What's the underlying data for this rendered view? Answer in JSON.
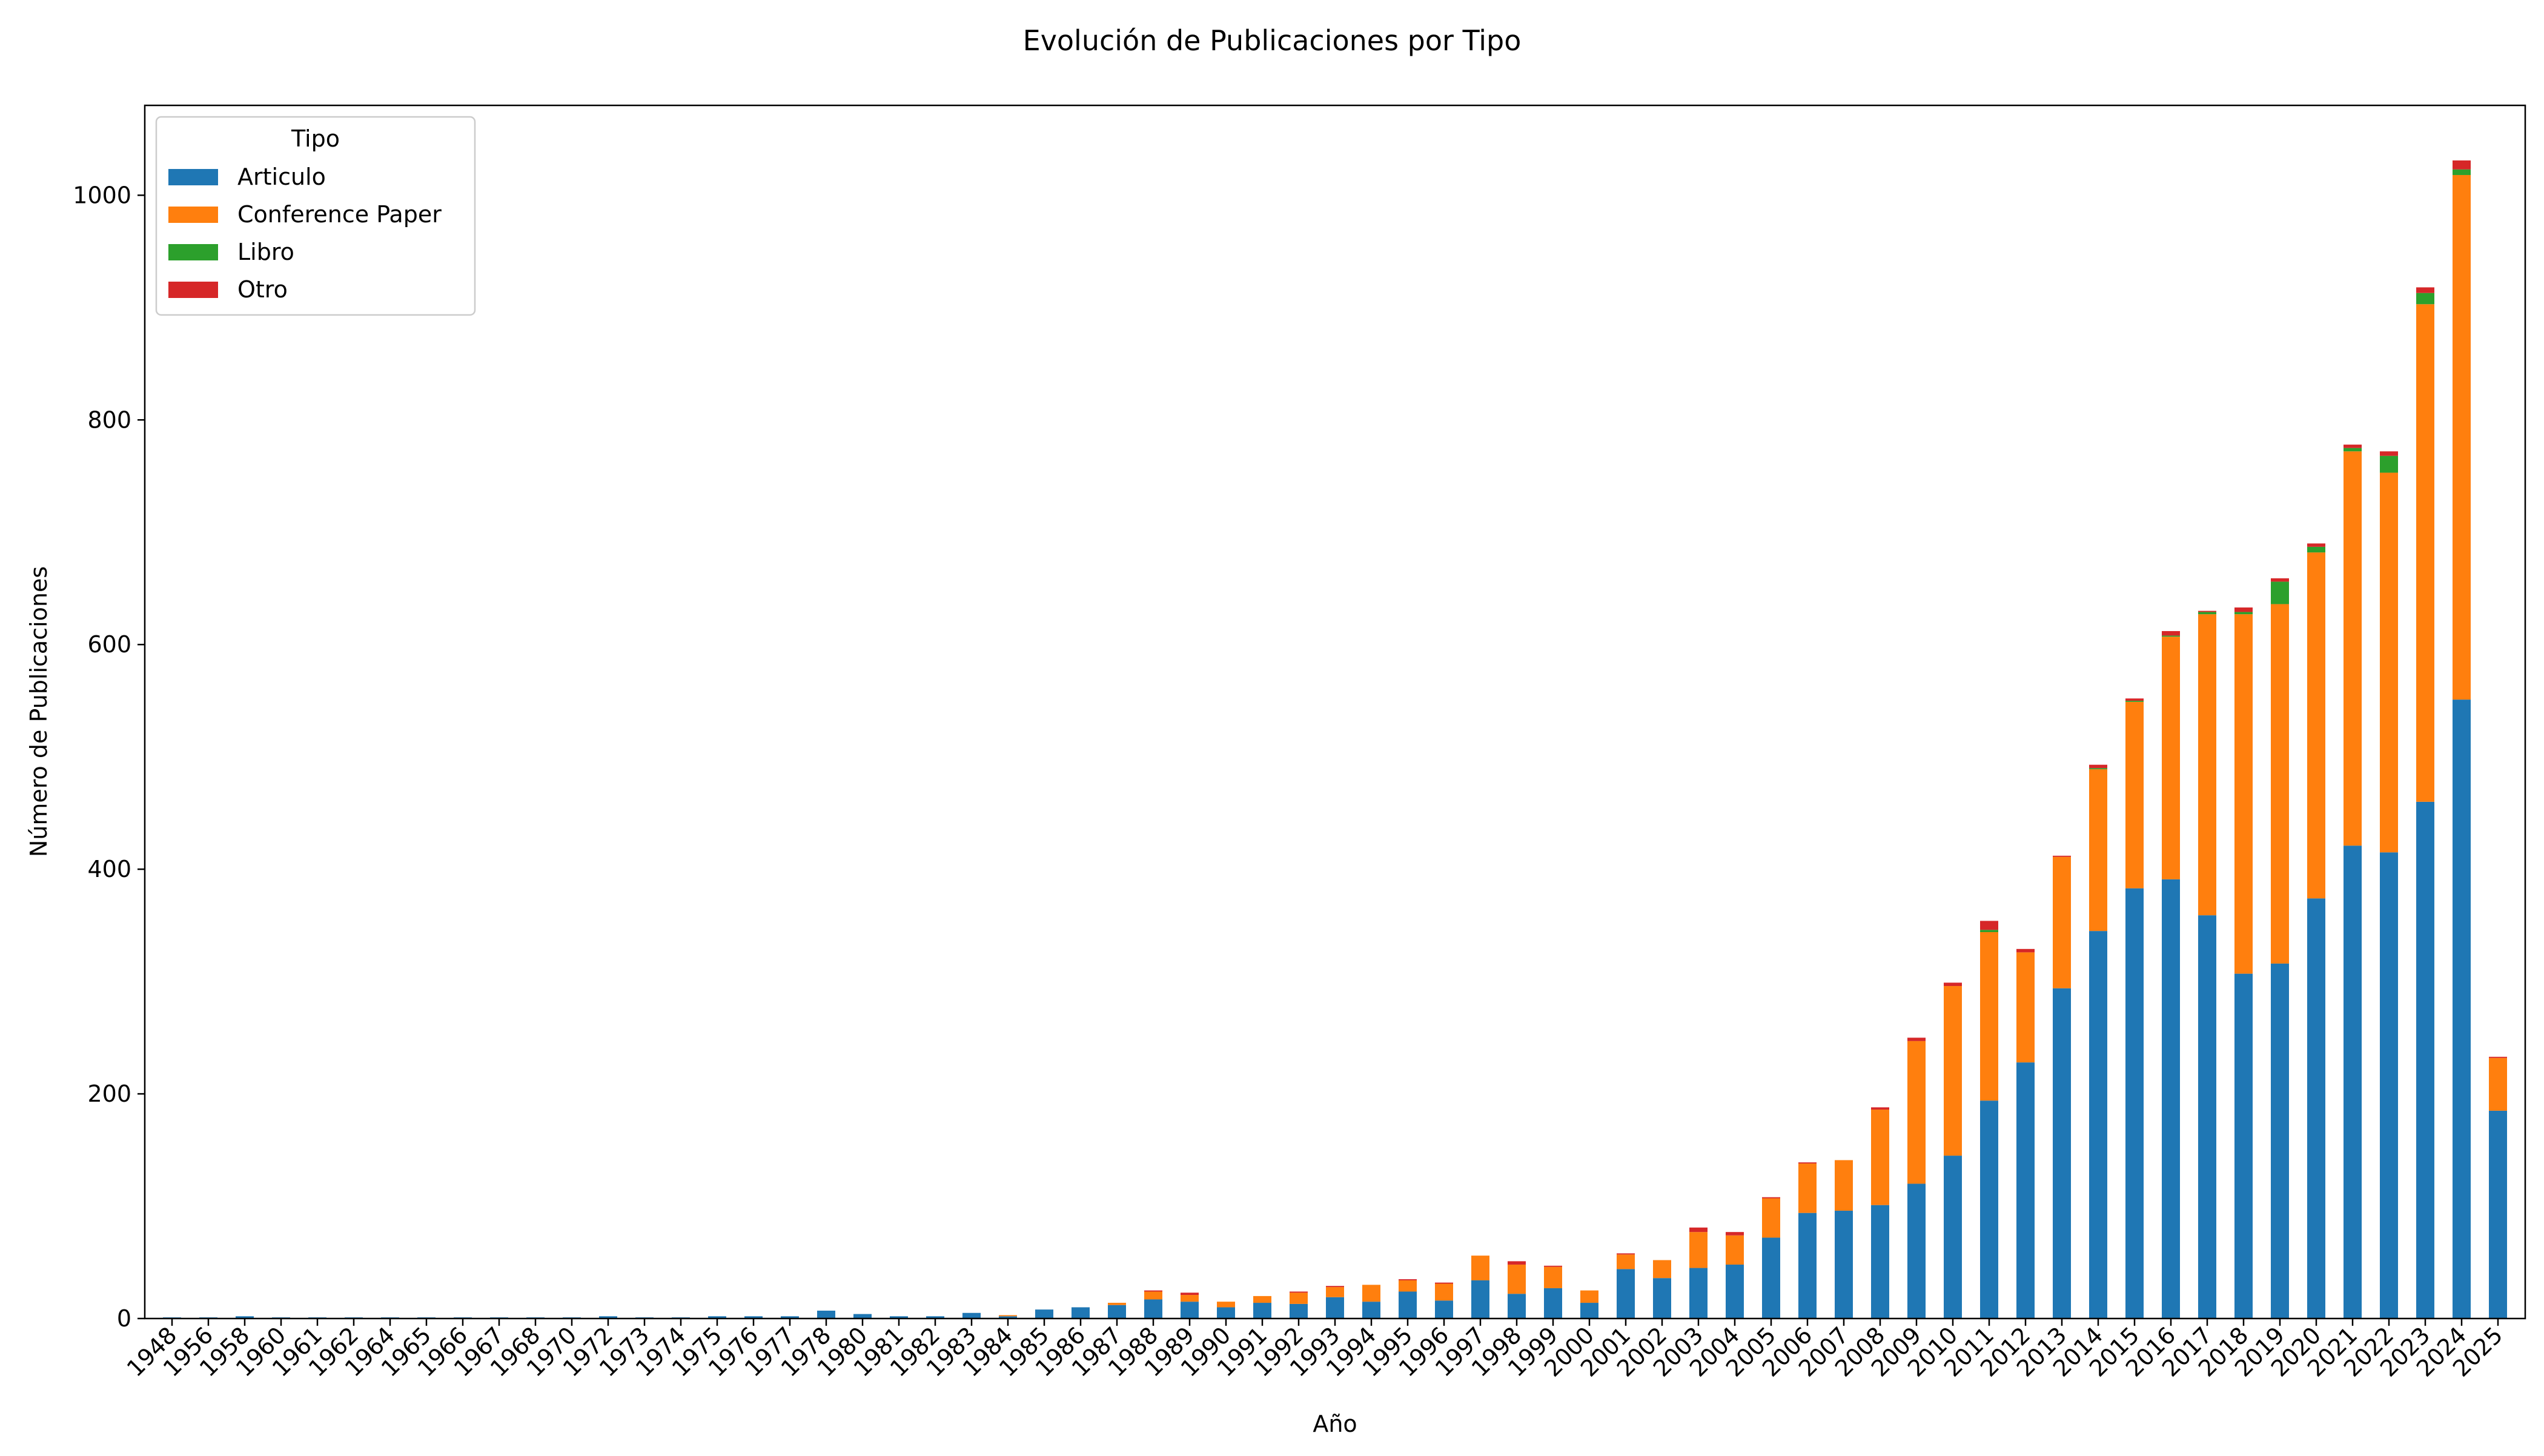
{
  "chart_data": {
    "type": "bar",
    "stacked": true,
    "title": "Evolución de Publicaciones por Tipo",
    "xlabel": "Año",
    "ylabel": "Número de Publicaciones",
    "ylim": [
      0,
      1080
    ],
    "yticks": [
      0,
      200,
      400,
      600,
      800,
      1000
    ],
    "grid": false,
    "legend": {
      "title": "Tipo",
      "placement": "upper-left"
    },
    "categories": [
      "1948",
      "1956",
      "1958",
      "1960",
      "1961",
      "1962",
      "1964",
      "1965",
      "1966",
      "1967",
      "1968",
      "1970",
      "1972",
      "1973",
      "1974",
      "1975",
      "1976",
      "1977",
      "1978",
      "1980",
      "1981",
      "1982",
      "1983",
      "1984",
      "1985",
      "1986",
      "1987",
      "1988",
      "1989",
      "1990",
      "1991",
      "1992",
      "1993",
      "1994",
      "1995",
      "1996",
      "1997",
      "1998",
      "1999",
      "2000",
      "2001",
      "2002",
      "2003",
      "2004",
      "2005",
      "2006",
      "2007",
      "2008",
      "2009",
      "2010",
      "2011",
      "2012",
      "2013",
      "2014",
      "2015",
      "2016",
      "2017",
      "2018",
      "2019",
      "2020",
      "2021",
      "2022",
      "2023",
      "2024",
      "2025"
    ],
    "series": [
      {
        "name": "Articulo",
        "color": "#1f77b4",
        "values": [
          1,
          1,
          2,
          1,
          1,
          1,
          1,
          1,
          1,
          1,
          1,
          1,
          2,
          1,
          1,
          2,
          2,
          2,
          7,
          4,
          2,
          2,
          5,
          2,
          8,
          10,
          12,
          17,
          15,
          10,
          14,
          13,
          19,
          15,
          24,
          16,
          34,
          22,
          27,
          14,
          44,
          36,
          45,
          48,
          72,
          94,
          96,
          101,
          120,
          145,
          194,
          228,
          294,
          345,
          383,
          391,
          359,
          307,
          316,
          374,
          421,
          415,
          460,
          551,
          185
        ]
      },
      {
        "name": "Conference Paper",
        "color": "#ff7f0e",
        "values": [
          0,
          0,
          0,
          0,
          0,
          0,
          0,
          0,
          0,
          0,
          0,
          0,
          0,
          0,
          0,
          0,
          0,
          0,
          0,
          0,
          0,
          0,
          0,
          1,
          0,
          0,
          2,
          7,
          6,
          5,
          6,
          10,
          9,
          15,
          10,
          15,
          22,
          26,
          19,
          11,
          13,
          16,
          32,
          26,
          35,
          44,
          45,
          85,
          127,
          151,
          150,
          98,
          117,
          144,
          166,
          216,
          268,
          320,
          320,
          308,
          351,
          338,
          443,
          467,
          47
        ]
      },
      {
        "name": "Libro",
        "color": "#2ca02c",
        "values": [
          0,
          0,
          0,
          0,
          0,
          0,
          0,
          0,
          0,
          0,
          0,
          0,
          0,
          0,
          0,
          0,
          0,
          0,
          0,
          0,
          0,
          0,
          0,
          0,
          0,
          0,
          0,
          0,
          0,
          0,
          0,
          0,
          0,
          0,
          0,
          0,
          0,
          0,
          0,
          0,
          0,
          0,
          0,
          0,
          0,
          0,
          0,
          0,
          0,
          0,
          2,
          0,
          0,
          1,
          1,
          1,
          2,
          2,
          20,
          5,
          3,
          15,
          10,
          5,
          0
        ]
      },
      {
        "name": "Otro",
        "color": "#d62728",
        "values": [
          0,
          0,
          0,
          0,
          0,
          0,
          0,
          0,
          0,
          0,
          0,
          0,
          0,
          0,
          0,
          0,
          0,
          0,
          0,
          0,
          0,
          0,
          0,
          0,
          0,
          0,
          0,
          1,
          2,
          0,
          0,
          1,
          1,
          0,
          1,
          1,
          0,
          3,
          1,
          0,
          1,
          0,
          4,
          3,
          1,
          1,
          0,
          2,
          3,
          3,
          8,
          3,
          1,
          3,
          2,
          4,
          1,
          4,
          3,
          3,
          3,
          4,
          5,
          8,
          1
        ]
      }
    ]
  }
}
